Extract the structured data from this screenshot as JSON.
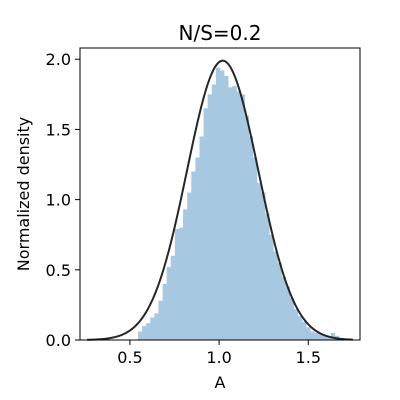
{
  "chart_data": {
    "type": "histogram",
    "title": "N/S=0.2",
    "xlabel": "A",
    "ylabel": "Normalized density",
    "xlim": [
      0.22,
      1.79
    ],
    "ylim": [
      0.0,
      2.08
    ],
    "xticks": [
      0.5,
      1.0,
      1.5
    ],
    "xtick_labels": [
      "0.5",
      "1.0",
      "1.5"
    ],
    "yticks": [
      0.0,
      0.5,
      1.0,
      1.5,
      2.0
    ],
    "ytick_labels": [
      "0.0",
      "0.5",
      "1.0",
      "1.5",
      "2.0"
    ],
    "grid": false,
    "colors": {
      "bars": "#a6c8e0",
      "curve": "#262626",
      "frame": "#000000"
    },
    "histogram": {
      "bin_edges": [
        0.545,
        0.568,
        0.591,
        0.614,
        0.637,
        0.66,
        0.683,
        0.706,
        0.729,
        0.752,
        0.775,
        0.798,
        0.821,
        0.844,
        0.867,
        0.89,
        0.913,
        0.936,
        0.959,
        0.982,
        1.005,
        1.028,
        1.051,
        1.074,
        1.097,
        1.12,
        1.143,
        1.166,
        1.189,
        1.212,
        1.235,
        1.258,
        1.281,
        1.304,
        1.327,
        1.35,
        1.373,
        1.396,
        1.419,
        1.442,
        1.465,
        1.488,
        1.511,
        1.534,
        1.557,
        1.58,
        1.603,
        1.626,
        1.649,
        1.672
      ],
      "density": [
        0.06,
        0.1,
        0.12,
        0.16,
        0.19,
        0.28,
        0.4,
        0.52,
        0.6,
        0.79,
        0.8,
        0.93,
        1.05,
        1.2,
        1.3,
        1.45,
        1.65,
        1.75,
        1.82,
        1.94,
        1.92,
        1.88,
        1.8,
        1.81,
        1.77,
        1.75,
        1.6,
        1.45,
        1.3,
        1.12,
        1.05,
        0.9,
        0.75,
        0.63,
        0.55,
        0.45,
        0.38,
        0.3,
        0.22,
        0.17,
        0.13,
        0.09,
        0.06,
        0.05,
        0.04,
        0.03,
        0.025,
        0.05,
        0.03
      ]
    },
    "curve": {
      "kind": "gaussian",
      "mean": 1.02,
      "std": 0.2,
      "peak": 1.99,
      "x_range": [
        0.26,
        1.75
      ]
    }
  }
}
